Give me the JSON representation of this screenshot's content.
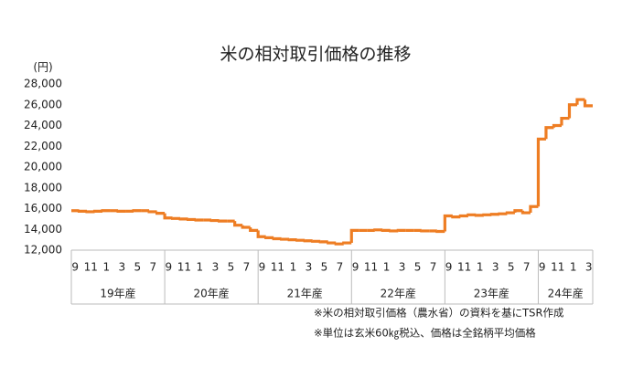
{
  "chart_data": {
    "type": "step-line",
    "title": "米の相対取引価格の推移",
    "y_unit": "(円)",
    "categories": [
      "9",
      null,
      "11",
      null,
      "1",
      null,
      "3",
      null,
      "5",
      null,
      "7",
      null,
      "9",
      null,
      "11",
      null,
      "1",
      null,
      "3",
      null,
      "5",
      null,
      "7",
      null,
      "9",
      null,
      "11",
      null,
      "1",
      null,
      "3",
      null,
      "5",
      null,
      "7",
      null,
      "9",
      null,
      "11",
      null,
      "1",
      null,
      "3",
      null,
      "5",
      null,
      "7",
      null,
      "9",
      null,
      "11",
      null,
      "1",
      null,
      "3",
      null,
      "5",
      null,
      "7",
      null,
      "9",
      null,
      "11",
      null,
      "1",
      null,
      "3"
    ],
    "groups": [
      "19年産",
      "20年産",
      "21年産",
      "22年産",
      "23年産",
      "24年産"
    ],
    "series": [
      {
        "name": "相対取引価格",
        "color": "#ee7d23",
        "values": [
          15800,
          15750,
          15700,
          15750,
          15800,
          15800,
          15750,
          15750,
          15800,
          15800,
          15700,
          15550,
          15100,
          15050,
          15000,
          14950,
          14900,
          14900,
          14850,
          14800,
          14800,
          14400,
          14200,
          13900,
          13300,
          13200,
          13100,
          13050,
          13000,
          12950,
          12900,
          12850,
          12800,
          12700,
          12600,
          12700,
          13900,
          13900,
          13900,
          13950,
          13900,
          13850,
          13900,
          13900,
          13900,
          13850,
          13850,
          13800,
          15300,
          15200,
          15300,
          15400,
          15350,
          15400,
          15450,
          15500,
          15600,
          15800,
          15600,
          16200,
          22700,
          23800,
          24000,
          24700,
          26000,
          26500,
          25900
        ]
      }
    ],
    "ylim": [
      12000,
      28000
    ],
    "yticks": [
      {
        "value": 12000,
        "label": "12,000"
      },
      {
        "value": 14000,
        "label": "14,000"
      },
      {
        "value": 16000,
        "label": "16,000"
      },
      {
        "value": 18000,
        "label": "18,000"
      },
      {
        "value": 20000,
        "label": "20,000"
      },
      {
        "value": 22000,
        "label": "22,000"
      },
      {
        "value": 24000,
        "label": "24,000"
      },
      {
        "value": 26000,
        "label": "26,000"
      },
      {
        "value": 28000,
        "label": "28,000"
      }
    ],
    "grid": false,
    "notes": [
      "※米の相対取引価格（農水省）の資料を基にTSR作成",
      "※単位は玄米60㎏税込、価格は全銘柄平均価格"
    ]
  }
}
